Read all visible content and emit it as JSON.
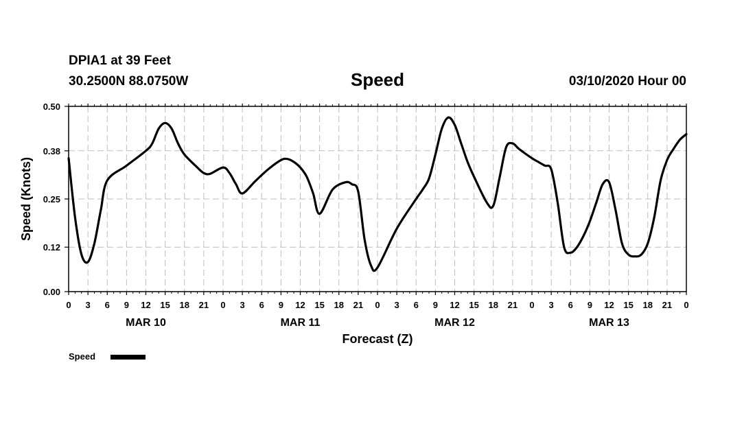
{
  "header": {
    "station": "DPIA1 at 39 Feet",
    "coords": "30.2500N 88.0750W",
    "title": "Speed",
    "datetime": "03/10/2020 Hour 00"
  },
  "chart_data": {
    "type": "line",
    "title": "Speed",
    "xlabel": "Forecast (Z)",
    "ylabel": "Speed (Knots)",
    "ylim": [
      0,
      0.5
    ],
    "yticks": [
      0.0,
      0.12,
      0.25,
      0.38,
      0.5
    ],
    "ytick_labels": [
      "0.00",
      "0.12",
      "0.25",
      "0.38",
      "0.50"
    ],
    "xlim": [
      0,
      96
    ],
    "xtick_labels": [
      "0",
      "3",
      "6",
      "9",
      "12",
      "15",
      "18",
      "21",
      "0",
      "3",
      "6",
      "9",
      "12",
      "15",
      "18",
      "21",
      "0",
      "3",
      "6",
      "9",
      "12",
      "15",
      "18",
      "21",
      "0",
      "3",
      "6",
      "9",
      "12",
      "15",
      "18",
      "21",
      "0"
    ],
    "day_labels": [
      {
        "label": "MAR 10",
        "hour": 12
      },
      {
        "label": "MAR 11",
        "hour": 36
      },
      {
        "label": "MAR 12",
        "hour": 60
      },
      {
        "label": "MAR 13",
        "hour": 84
      }
    ],
    "grid": true,
    "legend_position": "bottom-left",
    "series": [
      {
        "name": "Speed",
        "color": "#000000",
        "x": [
          0,
          1,
          2,
          3,
          4,
          5,
          6,
          9,
          12,
          13,
          14,
          15,
          16,
          17,
          18,
          20,
          21,
          22,
          24,
          25,
          26,
          27,
          29,
          31,
          33,
          34,
          35,
          36,
          37,
          38,
          39,
          41,
          43,
          44,
          45,
          46,
          47,
          48,
          51,
          54,
          55,
          56,
          57,
          58,
          59,
          60,
          61,
          62,
          63,
          65,
          66,
          67,
          68,
          69,
          70,
          72,
          73,
          74,
          75,
          76,
          77,
          78,
          79,
          80,
          81,
          82,
          83,
          84,
          85,
          86,
          87,
          88,
          89,
          90,
          91,
          92,
          93,
          94,
          95,
          96
        ],
        "y": [
          0.36,
          0.2,
          0.1,
          0.08,
          0.13,
          0.22,
          0.3,
          0.34,
          0.38,
          0.4,
          0.44,
          0.455,
          0.44,
          0.4,
          0.37,
          0.335,
          0.32,
          0.318,
          0.335,
          0.32,
          0.29,
          0.265,
          0.298,
          0.33,
          0.355,
          0.358,
          0.35,
          0.335,
          0.31,
          0.265,
          0.21,
          0.275,
          0.295,
          0.29,
          0.27,
          0.14,
          0.07,
          0.065,
          0.17,
          0.25,
          0.275,
          0.305,
          0.37,
          0.44,
          0.47,
          0.45,
          0.4,
          0.35,
          0.31,
          0.24,
          0.232,
          0.31,
          0.39,
          0.4,
          0.385,
          0.36,
          0.35,
          0.34,
          0.33,
          0.24,
          0.12,
          0.105,
          0.12,
          0.15,
          0.19,
          0.24,
          0.29,
          0.295,
          0.22,
          0.13,
          0.1,
          0.095,
          0.1,
          0.13,
          0.2,
          0.3,
          0.355,
          0.385,
          0.41,
          0.425
        ]
      }
    ]
  }
}
